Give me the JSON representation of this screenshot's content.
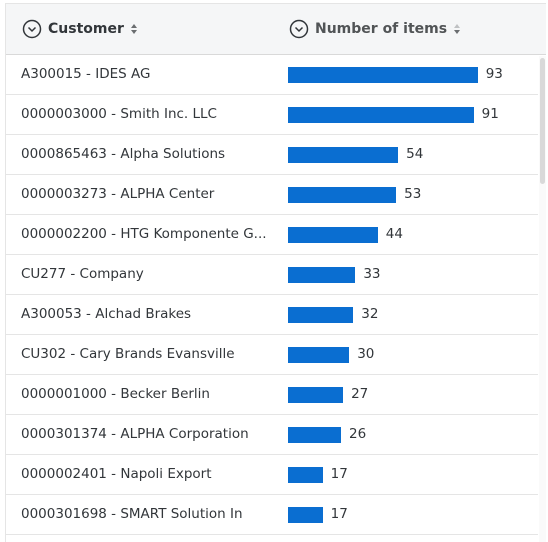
{
  "table": {
    "columns": [
      "Customer",
      "Number of items"
    ],
    "rows": [
      [
        "A300015 - IDES AG",
        93
      ],
      [
        "0000003000 - Smith Inc. LLC",
        91
      ],
      [
        "0000865463 - Alpha Solutions",
        54
      ],
      [
        "0000003273 - ALPHA Center",
        53
      ],
      [
        "0000002200 - HTG Komponente G...",
        44
      ],
      [
        "CU277 - Company",
        33
      ],
      [
        "A300053 - Alchad Brakes",
        32
      ],
      [
        "CU302 - Cary Brands Evansville",
        30
      ],
      [
        "0000001000 - Becker Berlin",
        27
      ],
      [
        "0000301374 - ALPHA Corporation",
        26
      ],
      [
        "0000002401 - Napoli Export",
        17
      ],
      [
        "0000301698 - SMART Solution In",
        17
      ]
    ]
  }
}
